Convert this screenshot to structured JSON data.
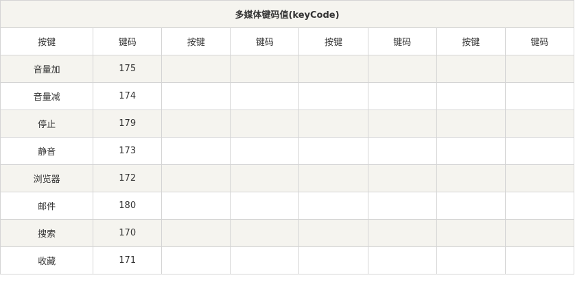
{
  "table": {
    "title": "多媒体键码值(keyCode)",
    "headers": [
      "按键",
      "键码",
      "按键",
      "键码",
      "按键",
      "键码",
      "按键",
      "键码"
    ],
    "rows": [
      [
        "音量加",
        "175",
        "",
        "",
        "",
        "",
        "",
        ""
      ],
      [
        "音量减",
        "174",
        "",
        "",
        "",
        "",
        "",
        ""
      ],
      [
        "停止",
        "179",
        "",
        "",
        "",
        "",
        "",
        ""
      ],
      [
        "静音",
        "173",
        "",
        "",
        "",
        "",
        "",
        ""
      ],
      [
        "浏览器",
        "172",
        "",
        "",
        "",
        "",
        "",
        ""
      ],
      [
        "邮件",
        "180",
        "",
        "",
        "",
        "",
        "",
        ""
      ],
      [
        "搜索",
        "170",
        "",
        "",
        "",
        "",
        "",
        ""
      ],
      [
        "收藏",
        "171",
        "",
        "",
        "",
        "",
        "",
        ""
      ]
    ]
  },
  "colors": {
    "stripe": "#f5f4ef",
    "border": "#d4d4d4",
    "text": "#333333"
  }
}
